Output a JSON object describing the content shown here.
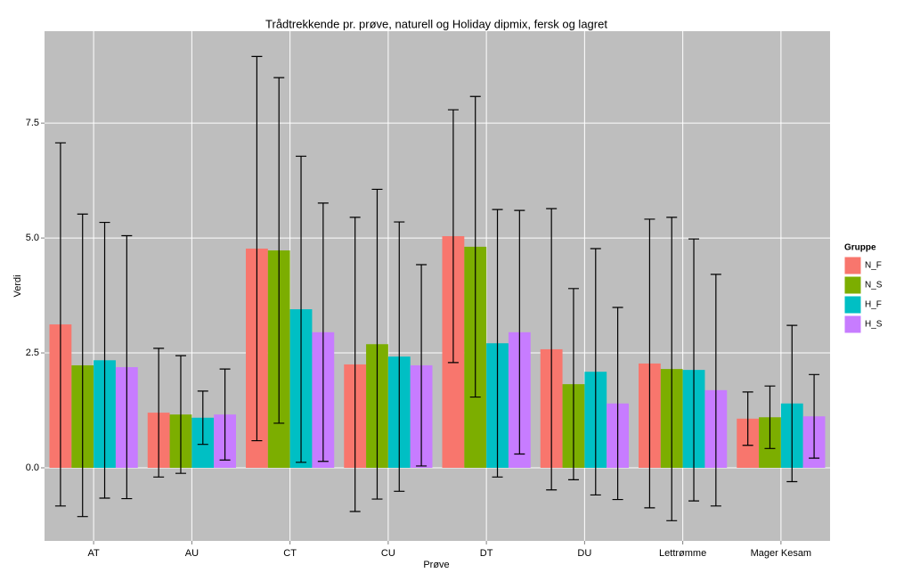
{
  "chart_data": {
    "type": "bar",
    "title": "Trådtrekkende pr. prøve, naturell og Holiday dipmix, fersk og lagret",
    "x_label": "Prøve",
    "y_label": "Verdi",
    "legend_title": "Gruppe",
    "legend_position": "right",
    "grid": true,
    "categories": [
      "AT",
      "AU",
      "CT",
      "CU",
      "DT",
      "DU",
      "Lettrømme",
      "Mager Kesam"
    ],
    "ylim": [
      -1.59,
      9.5
    ],
    "yticks": [
      {
        "value": 0,
        "label": "0.0"
      },
      2.5,
      {
        "value": 5,
        "label": "5.0"
      },
      7.5
    ],
    "series": [
      {
        "name": "N_F",
        "color": "#F8766D",
        "values": [
          3.12,
          1.2,
          4.77,
          2.25,
          5.04,
          2.58,
          2.27,
          1.07
        ],
        "errors": [
          3.95,
          1.4,
          4.18,
          3.2,
          2.75,
          3.06,
          3.14,
          0.58
        ]
      },
      {
        "name": "N_S",
        "color": "#7CAE00",
        "values": [
          2.23,
          1.16,
          4.73,
          2.69,
          4.81,
          1.82,
          2.15,
          1.1
        ],
        "errors": [
          3.29,
          1.28,
          3.76,
          3.37,
          3.27,
          2.08,
          3.3,
          0.68
        ]
      },
      {
        "name": "H_F",
        "color": "#00BFC4",
        "values": [
          2.34,
          1.09,
          3.45,
          2.42,
          2.71,
          2.09,
          2.13,
          1.4
        ],
        "errors": [
          3.0,
          0.58,
          3.33,
          2.93,
          2.91,
          2.68,
          2.85,
          1.7
        ]
      },
      {
        "name": "H_S",
        "color": "#C77CFF",
        "values": [
          2.19,
          1.16,
          2.95,
          2.23,
          2.95,
          1.4,
          1.69,
          1.12
        ],
        "errors": [
          2.86,
          0.99,
          2.81,
          2.19,
          2.65,
          2.09,
          2.52,
          0.91
        ]
      }
    ]
  }
}
